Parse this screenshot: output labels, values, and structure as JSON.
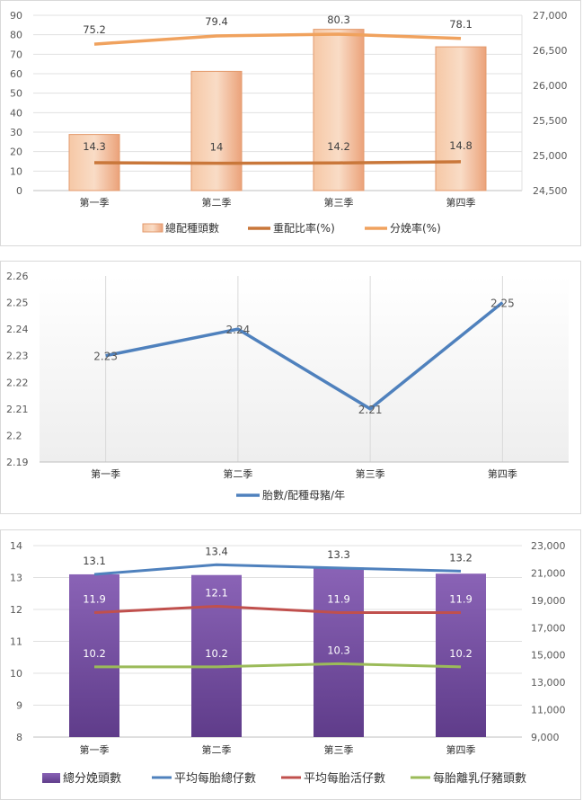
{
  "chart_data": [
    {
      "type": "bar",
      "categories": [
        "第一季",
        "第二季",
        "第三季",
        "第四季"
      ],
      "y_left": {
        "ticks": [
          "0",
          "10",
          "20",
          "30",
          "40",
          "50",
          "60",
          "70",
          "80",
          "90"
        ],
        "min": 0,
        "max": 90
      },
      "y_right": {
        "ticks": [
          "24,500",
          "25,000",
          "25,500",
          "26,000",
          "26,500",
          "27,000"
        ],
        "min": 24500,
        "max": 27000
      },
      "series": [
        {
          "name": "總配種頭數",
          "type": "bar",
          "axis": "right",
          "values": [
            25300,
            26200,
            26800,
            26550
          ],
          "color": "#f2b38a"
        },
        {
          "name": "重配比率(%)",
          "type": "line",
          "axis": "left",
          "values": [
            14.3,
            14,
            14.2,
            14.8
          ],
          "labels": [
            "14.3",
            "14",
            "14.2",
            "14.8"
          ],
          "color": "#c9773a"
        },
        {
          "name": "分娩率(%)",
          "type": "line",
          "axis": "left",
          "values": [
            75.2,
            79.4,
            80.3,
            78.1
          ],
          "labels": [
            "75.2",
            "79.4",
            "80.3",
            "78.1"
          ],
          "color": "#f0a25e"
        }
      ],
      "grid": true,
      "legend": "bottom"
    },
    {
      "type": "line",
      "categories": [
        "第一季",
        "第二季",
        "第三季",
        "第四季"
      ],
      "y_left": {
        "ticks": [
          "2.19",
          "2.2",
          "2.21",
          "2.22",
          "2.23",
          "2.24",
          "2.25",
          "2.26"
        ],
        "min": 2.19,
        "max": 2.26
      },
      "series": [
        {
          "name": "胎數/配種母豬/年",
          "values": [
            2.23,
            2.24,
            2.21,
            2.25
          ],
          "labels": [
            "2.23",
            "2.24",
            "2.21",
            "2.25"
          ],
          "color": "#4f81bd"
        }
      ],
      "grid": true,
      "legend": "bottom"
    },
    {
      "type": "bar",
      "categories": [
        "第一季",
        "第二季",
        "第三季",
        "第四季"
      ],
      "y_left": {
        "ticks": [
          "8",
          "9",
          "10",
          "11",
          "12",
          "13",
          "14"
        ],
        "min": 8,
        "max": 14
      },
      "y_right": {
        "ticks": [
          "9,000",
          "11,000",
          "13,000",
          "15,000",
          "17,000",
          "19,000",
          "21,000",
          "23,000"
        ],
        "min": 9000,
        "max": 23000
      },
      "series": [
        {
          "name": "總分娩頭數",
          "type": "bar",
          "axis": "right",
          "values": [
            20900,
            20850,
            21400,
            20950
          ],
          "color": "#7b52a8"
        },
        {
          "name": "平均每胎總仔數",
          "type": "line",
          "axis": "left",
          "values": [
            13.1,
            13.4,
            13.3,
            13.2
          ],
          "labels": [
            "13.1",
            "13.4",
            "13.3",
            "13.2"
          ],
          "color": "#4f81bd"
        },
        {
          "name": "平均每胎活仔數",
          "type": "line",
          "axis": "left",
          "values": [
            11.9,
            12.1,
            11.9,
            11.9
          ],
          "labels": [
            "11.9",
            "12.1",
            "11.9",
            "11.9"
          ],
          "color": "#c0504d"
        },
        {
          "name": "每胎離乳仔豬頭數",
          "type": "line",
          "axis": "left",
          "values": [
            10.2,
            10.2,
            10.3,
            10.2
          ],
          "labels": [
            "10.2",
            "10.2",
            "10.3",
            "10.2"
          ],
          "color": "#9bbb59"
        }
      ],
      "grid": true,
      "legend": "bottom"
    }
  ]
}
